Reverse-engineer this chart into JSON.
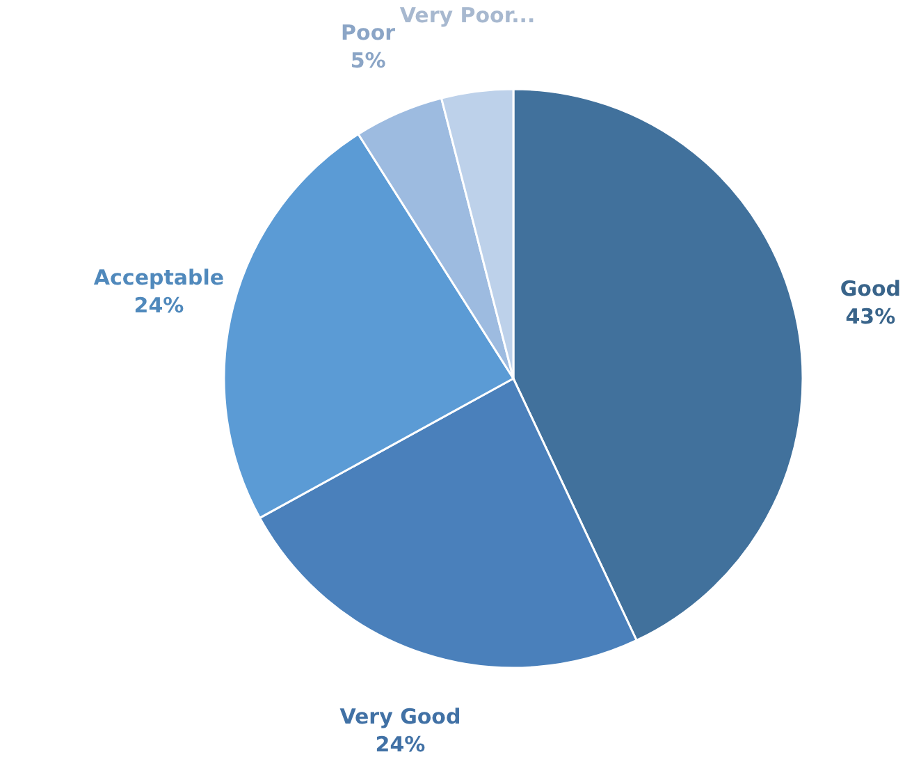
{
  "chart_data": {
    "type": "pie",
    "categories": [
      "Good",
      "Very Good",
      "Acceptable",
      "Poor",
      "Very Poor..."
    ],
    "values": [
      43,
      24,
      24,
      5,
      4
    ],
    "colors": [
      "#41719c",
      "#4a80bb",
      "#5b9bd5",
      "#9dbbe0",
      "#bdd1ea"
    ],
    "value_labels": [
      "43%",
      "24%",
      "24%",
      "5%",
      null
    ]
  }
}
